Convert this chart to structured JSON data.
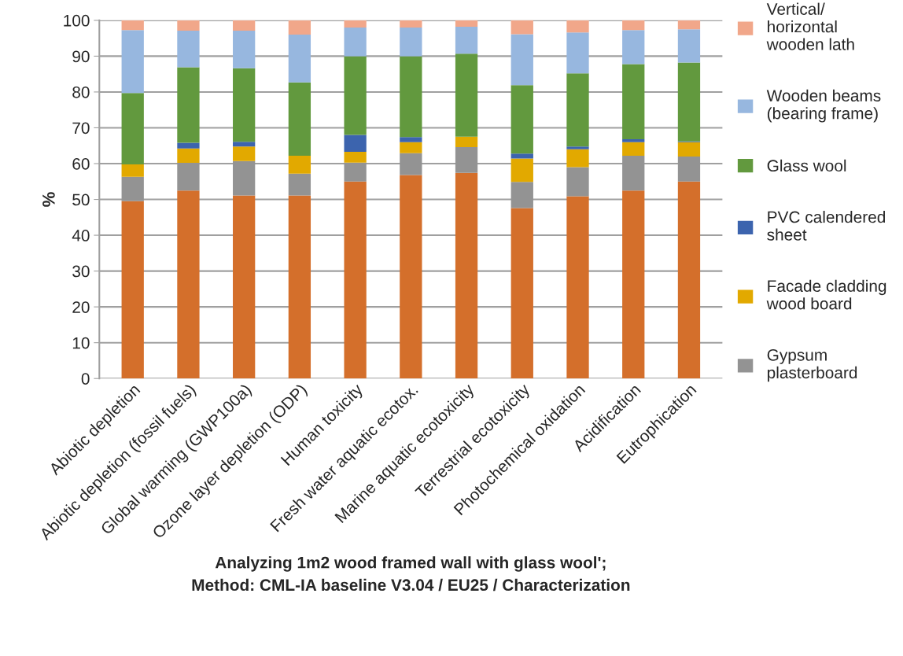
{
  "chart_data": {
    "type": "bar",
    "stacked": true,
    "xlabel": "Analyzing 1m2 wood framed wall with glass wool';\nMethod: CML-IA baseline V3.04 / EU25 / Characterization",
    "ylabel": "%",
    "categories": [
      "Abiotic depletion",
      "Abiotic depletion (fossil fuels)",
      "Global warming (GWP100a)",
      "Ozone layer depletion (ODP)",
      "Human toxicity",
      "Fresh water aquatic ecotox.",
      "Marine aquatic ecotoxicity",
      "Terrestrial ecotoxicity",
      "Photochemical oxidation",
      "Acidification",
      "Eutrophication"
    ],
    "series": [
      {
        "color": "#d46f2b",
        "values": [
          49.5,
          52.5,
          51.1,
          51.1,
          55.0,
          56.8,
          57.4,
          47.6,
          50.9,
          52.5,
          55.0
        ]
      },
      {
        "name": "Gypsum plasterboard",
        "color": "#939393",
        "values": [
          6.8,
          7.7,
          9.6,
          6.1,
          5.3,
          6.1,
          7.2,
          7.3,
          8.1,
          9.7,
          7.0
        ]
      },
      {
        "name": "Facade cladding wood board",
        "color": "#e2a900",
        "values": [
          3.5,
          4.0,
          4.1,
          5.0,
          3.0,
          3.1,
          2.9,
          6.5,
          5.0,
          3.8,
          4.0
        ]
      },
      {
        "name": "PVC calendered sheet",
        "color": "#3c64ae",
        "values": [
          0,
          1.6,
          1.3,
          0,
          4.7,
          1.4,
          0,
          1.4,
          0.8,
          0.8,
          0.2
        ]
      },
      {
        "name": "Glass wool",
        "color": "#62993e",
        "values": [
          19.9,
          21.1,
          20.5,
          20.5,
          22.0,
          22.6,
          23.2,
          19.1,
          20.4,
          21.0,
          22.0
        ]
      },
      {
        "name": "Wooden beams (bearing frame)",
        "color": "#97b7df",
        "values": [
          17.6,
          10.2,
          10.5,
          13.3,
          8.0,
          8.0,
          7.5,
          14.2,
          11.4,
          9.5,
          9.3
        ]
      },
      {
        "name": "Vertical/ horizontal wooden lath",
        "color": "#f1a78a",
        "values": [
          2.7,
          2.9,
          2.9,
          4.0,
          2.0,
          2.0,
          1.8,
          3.9,
          3.4,
          2.7,
          2.5
        ]
      }
    ],
    "ylim": [
      0,
      100
    ],
    "yticks": [
      0,
      10,
      20,
      30,
      40,
      50,
      60,
      70,
      80,
      90,
      100
    ],
    "grid": "y",
    "legend": "right"
  }
}
